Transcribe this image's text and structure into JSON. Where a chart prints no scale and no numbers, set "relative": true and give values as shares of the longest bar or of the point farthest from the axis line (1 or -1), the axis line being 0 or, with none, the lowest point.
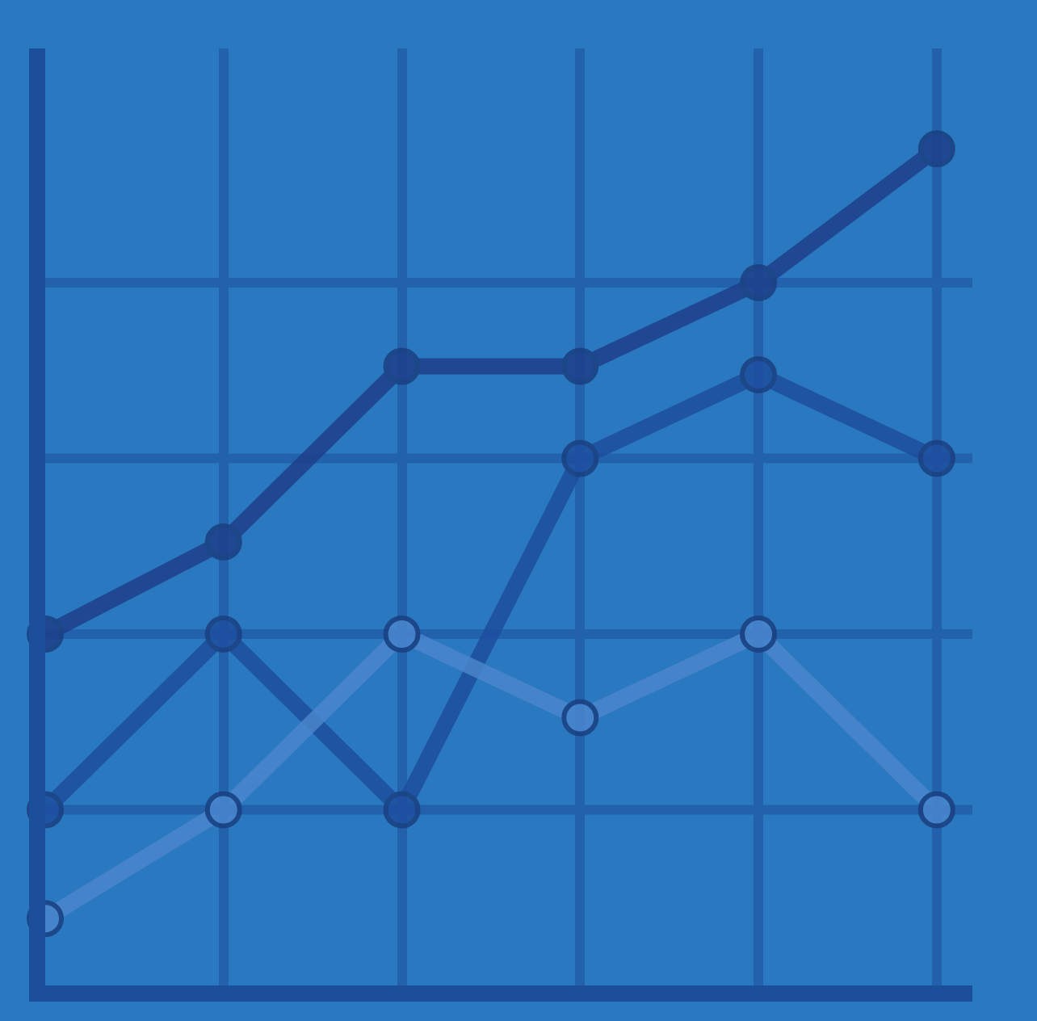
{
  "chart_data": {
    "type": "line",
    "relative": true,
    "categories": [
      null,
      null,
      null,
      null,
      null,
      null
    ],
    "grid": "x",
    "ref_lines": [
      {
        "axis": "y",
        "value": 0.21,
        "color": "#2262ad"
      },
      {
        "axis": "y",
        "value": 0.42,
        "color": "#2262ad"
      },
      {
        "axis": "y",
        "value": 0.63,
        "color": "#2262ad"
      },
      {
        "axis": "y",
        "value": 0.84,
        "color": "#2262ad"
      }
    ],
    "marker": "circle",
    "line_style": "solid",
    "series": [
      {
        "color": "#1f3f8a",
        "values": [
          0.42,
          0.53,
          0.74,
          0.74,
          0.84,
          1
        ]
      },
      {
        "color": "#1d4e9e",
        "values": [
          0.21,
          0.42,
          0.21,
          0.63,
          0.73,
          0.63
        ]
      },
      {
        "color": "#4a86cc",
        "values": [
          0.08,
          0.21,
          0.42,
          0.32,
          0.42,
          0.21
        ]
      }
    ]
  }
}
